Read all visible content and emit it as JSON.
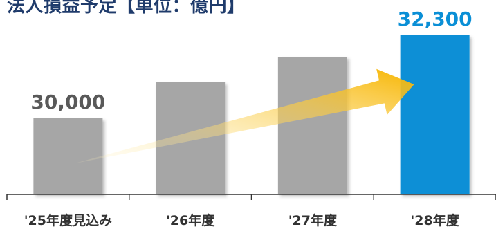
{
  "title": "法人損益予定【単位：億円】",
  "colors": {
    "bar_default": "#a6a6a6",
    "bar_highlight": "#0a8fd6",
    "label_default": "#595959",
    "label_highlight": "#0a8fd6",
    "arrow_start": "#fff3c4",
    "arrow_end": "#f7b500",
    "axis": "#333333"
  },
  "chart_data": {
    "type": "bar",
    "title": "法人損益予定【単位：億円】",
    "categories": [
      "'25年度見込み",
      "'26年度",
      "'27年度",
      "'28年度"
    ],
    "values": [
      30000,
      31000,
      31700,
      32300
    ],
    "data_labels": [
      "30,000",
      "",
      "",
      "32,300"
    ],
    "highlight_index": 3,
    "y_axis_visible": false,
    "grid": false,
    "legend": "none",
    "annotation": "trend-arrow"
  }
}
